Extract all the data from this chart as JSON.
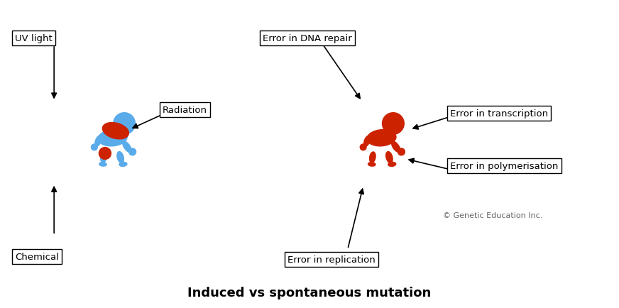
{
  "title": "Induced vs spontaneous mutation",
  "title_fontsize": 13,
  "title_fontweight": "bold",
  "bg_color": "#ffffff",
  "blue_baby_color": "#5aabea",
  "red_spot_color": "#cc2200",
  "red_baby_color": "#cc2200",
  "box_labels": {
    "uv_light": "UV light",
    "radiation": "Radiation",
    "chemical": "Chemical",
    "dna_repair": "Error in DNA repair",
    "transcription": "Error in transcription",
    "polymerisation": "Error in polymerisation",
    "replication": "Error in replication"
  },
  "copyright": "© Genetic Education Inc."
}
